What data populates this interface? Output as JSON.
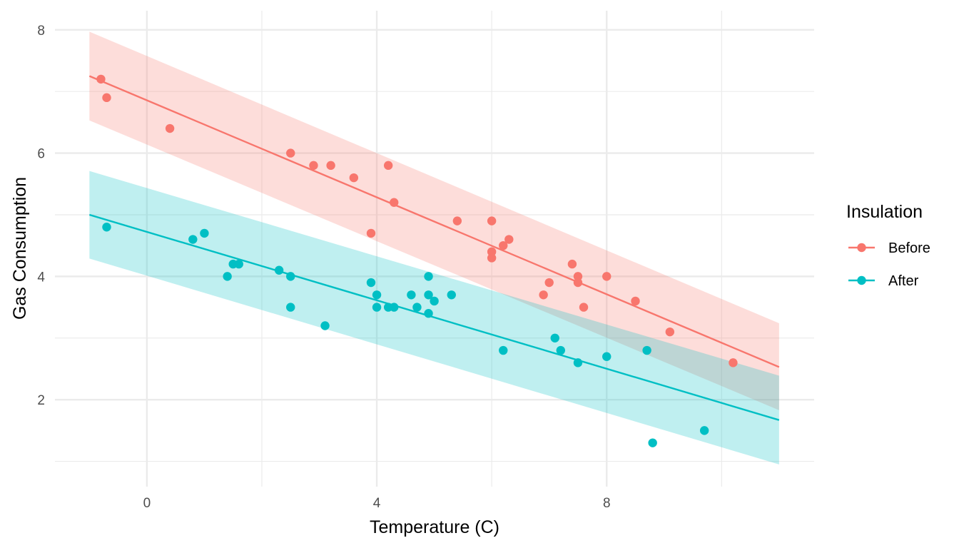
{
  "chart_data": {
    "type": "scatter",
    "title": "",
    "xlabel": "Temperature (C)",
    "ylabel": "Gas Consumption",
    "xlim": [
      -1.6,
      11.61
    ],
    "ylim": [
      0.59,
      8.31
    ],
    "x_ticks": [
      0,
      4,
      8
    ],
    "x_tick_labels": [
      "0",
      "4",
      "8"
    ],
    "x_minor_ticks": [
      2,
      6,
      10
    ],
    "y_ticks": [
      2,
      4,
      6,
      8
    ],
    "y_tick_labels": [
      "2",
      "4",
      "6",
      "8"
    ],
    "y_minor_ticks": [
      1,
      3,
      5,
      7
    ],
    "grid": true,
    "theme": "minimal",
    "legend": {
      "title": "Insulation",
      "position": "right",
      "entries": [
        "Before",
        "After"
      ]
    },
    "series": [
      {
        "name": "Before",
        "color": "#F8766D",
        "band_color": "#F8766D",
        "points": [
          [
            -0.8,
            7.2
          ],
          [
            -0.7,
            6.9
          ],
          [
            0.4,
            6.4
          ],
          [
            2.5,
            6.0
          ],
          [
            2.9,
            5.8
          ],
          [
            3.2,
            5.8
          ],
          [
            3.6,
            5.6
          ],
          [
            3.9,
            4.7
          ],
          [
            4.2,
            5.8
          ],
          [
            4.3,
            5.2
          ],
          [
            5.4,
            4.9
          ],
          [
            6.0,
            4.9
          ],
          [
            6.0,
            4.3
          ],
          [
            6.0,
            4.4
          ],
          [
            6.2,
            4.5
          ],
          [
            6.3,
            4.6
          ],
          [
            6.9,
            3.7
          ],
          [
            7.0,
            3.9
          ],
          [
            7.4,
            4.2
          ],
          [
            7.5,
            4.0
          ],
          [
            7.5,
            3.9
          ],
          [
            7.6,
            3.5
          ],
          [
            8.0,
            4.0
          ],
          [
            8.5,
            3.6
          ],
          [
            9.1,
            3.1
          ],
          [
            10.2,
            2.6
          ]
        ],
        "fit": {
          "x": [
            -1.0,
            11.0
          ],
          "y": [
            7.25,
            2.53
          ],
          "lower": [
            6.53,
            1.83
          ],
          "upper": [
            7.97,
            3.24
          ]
        }
      },
      {
        "name": "After",
        "color": "#00BFC4",
        "band_color": "#00BFC4",
        "points": [
          [
            -0.7,
            4.8
          ],
          [
            0.8,
            4.6
          ],
          [
            1.0,
            4.7
          ],
          [
            1.4,
            4.0
          ],
          [
            1.5,
            4.2
          ],
          [
            1.6,
            4.2
          ],
          [
            2.3,
            4.1
          ],
          [
            2.5,
            4.0
          ],
          [
            2.5,
            3.5
          ],
          [
            3.1,
            3.2
          ],
          [
            3.9,
            3.9
          ],
          [
            4.0,
            3.5
          ],
          [
            4.0,
            3.7
          ],
          [
            4.2,
            3.5
          ],
          [
            4.3,
            3.5
          ],
          [
            4.6,
            3.7
          ],
          [
            4.7,
            3.5
          ],
          [
            4.9,
            3.4
          ],
          [
            4.9,
            3.7
          ],
          [
            4.9,
            4.0
          ],
          [
            5.0,
            3.6
          ],
          [
            5.3,
            3.7
          ],
          [
            6.2,
            2.8
          ],
          [
            7.1,
            3.0
          ],
          [
            7.2,
            2.8
          ],
          [
            7.5,
            2.6
          ],
          [
            8.0,
            2.7
          ],
          [
            8.7,
            2.8
          ],
          [
            8.8,
            1.3
          ],
          [
            9.7,
            1.5
          ]
        ],
        "fit": {
          "x": [
            -1.0,
            11.0
          ],
          "y": [
            5.0,
            1.67
          ],
          "lower": [
            4.29,
            0.95
          ],
          "upper": [
            5.71,
            2.39
          ]
        }
      }
    ]
  }
}
